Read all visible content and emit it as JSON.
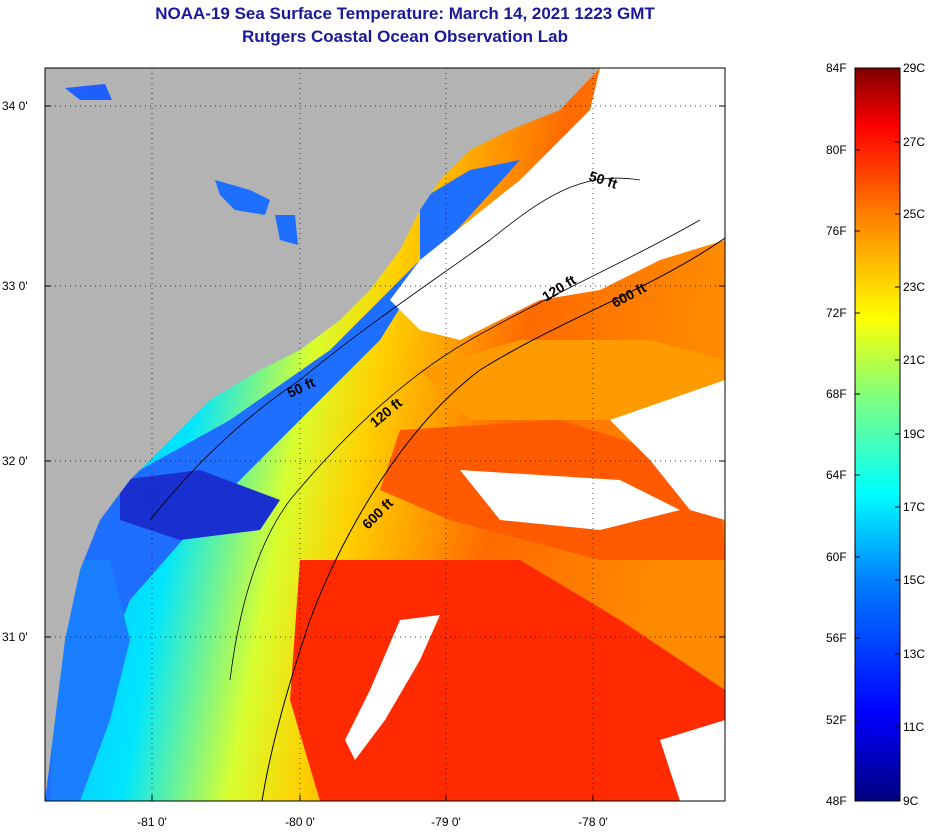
{
  "title": {
    "line1": "NOAA-19 Sea Surface Temperature:  March 14, 2021 1223 GMT",
    "line2": "Rutgers Coastal Ocean Observation Lab"
  },
  "axes": {
    "lat_labels": [
      "34 0'",
      "33 0'",
      "32 0'",
      "31 0'"
    ],
    "lon_labels": [
      "-81 0'",
      "-80 0'",
      "-79 0'",
      "-78 0'"
    ]
  },
  "depth_contours": [
    "50 ft",
    "120 ft",
    "600 ft",
    "50 ft",
    "120 ft",
    "600 ft"
  ],
  "colorbar": {
    "fahrenheit": [
      "84F",
      "80F",
      "76F",
      "72F",
      "68F",
      "64F",
      "60F",
      "56F",
      "52F",
      "48F"
    ],
    "celsius": [
      "29C",
      "27C",
      "25C",
      "23C",
      "21C",
      "19C",
      "17C",
      "15C",
      "13C",
      "11C",
      "9C"
    ],
    "stops": [
      "#00007f",
      "#0000ff",
      "#007fff",
      "#00ffff",
      "#7fff7f",
      "#ffff00",
      "#ff7f00",
      "#ff0000",
      "#7f0000"
    ]
  },
  "colors": {
    "land": "#b3b3b3",
    "cloud": "#ffffff",
    "title": "#1a1a9a"
  }
}
